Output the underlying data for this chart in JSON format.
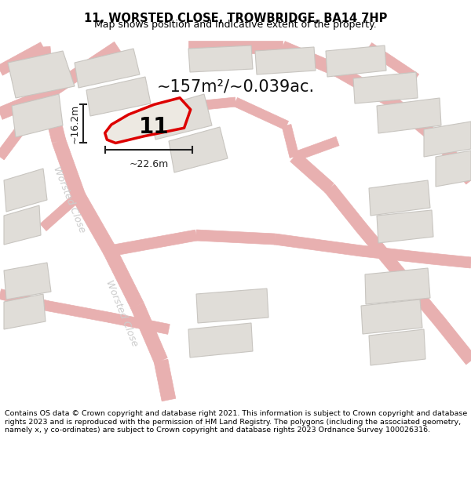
{
  "title": "11, WORSTED CLOSE, TROWBRIDGE, BA14 7HP",
  "subtitle": "Map shows position and indicative extent of the property.",
  "area_text": "~157m²/~0.039ac.",
  "dim_width": "~22.6m",
  "dim_height": "~16.2m",
  "plot_number": "11",
  "footer": "Contains OS data © Crown copyright and database right 2021. This information is subject to Crown copyright and database rights 2023 and is reproduced with the permission of HM Land Registry. The polygons (including the associated geometry, namely x, y co-ordinates) are subject to Crown copyright and database rights 2023 Ordnance Survey 100026316.",
  "map_bg": "#f5f3f0",
  "road_line_color": "#e8b0b0",
  "building_color": "#e0ddd8",
  "building_edge": "#c8c5c0",
  "plot_fill": "#ede9e2",
  "plot_edge": "#dd0000",
  "footer_bg": "#ffffff",
  "title_bg": "#ffffff",
  "worsted_label_color": "#cccccc",
  "dim_color": "#222222",
  "area_text_color": "#111111"
}
